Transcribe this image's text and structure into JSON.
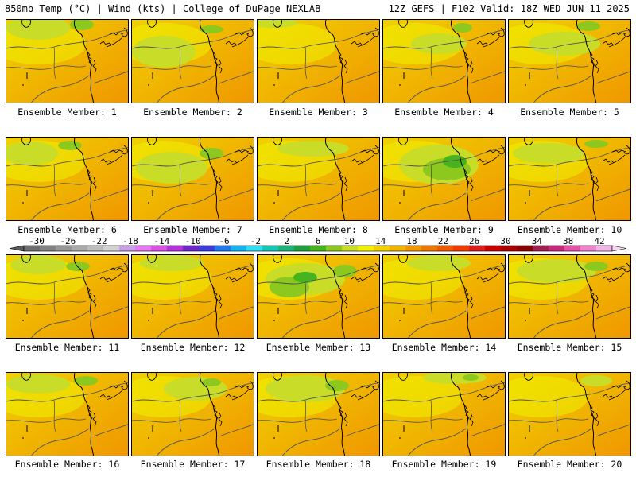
{
  "header": {
    "left": "850mb Temp (°C) | Wind (kts) | College of DuPage NEXLAB",
    "right": "12Z GEFS | F102 Valid: 18Z WED JUN 11 2025"
  },
  "panels": [
    {
      "caption": "Ensemble Member: 1"
    },
    {
      "caption": "Ensemble Member: 2"
    },
    {
      "caption": "Ensemble Member: 3"
    },
    {
      "caption": "Ensemble Member: 4"
    },
    {
      "caption": "Ensemble Member: 5"
    },
    {
      "caption": "Ensemble Member: 6"
    },
    {
      "caption": "Ensemble Member: 7"
    },
    {
      "caption": "Ensemble Member: 8"
    },
    {
      "caption": "Ensemble Member: 9"
    },
    {
      "caption": "Ensemble Member: 10"
    },
    {
      "caption": "Ensemble Member: 11"
    },
    {
      "caption": "Ensemble Member: 12"
    },
    {
      "caption": "Ensemble Member: 13"
    },
    {
      "caption": "Ensemble Member: 14"
    },
    {
      "caption": "Ensemble Member: 15"
    },
    {
      "caption": "Ensemble Member: 16"
    },
    {
      "caption": "Ensemble Member: 17"
    },
    {
      "caption": "Ensemble Member: 18"
    },
    {
      "caption": "Ensemble Member: 19"
    },
    {
      "caption": "Ensemble Member: 20"
    }
  ],
  "colorbar": {
    "labels": [
      "-30",
      "-26",
      "-22",
      "-18",
      "-14",
      "-10",
      "-6",
      "-2",
      "2",
      "6",
      "10",
      "14",
      "18",
      "22",
      "26",
      "30",
      "34",
      "38",
      "42"
    ],
    "colors": [
      "#6e6e6e",
      "#828282",
      "#969696",
      "#aaaaaa",
      "#bebebe",
      "#d2d2d2",
      "#c8a0e6",
      "#e678f0",
      "#dc50e6",
      "#b432dc",
      "#6e28c8",
      "#3c3cdc",
      "#1e78f0",
      "#14b4f0",
      "#32dcf0",
      "#14c8b4",
      "#1eb478",
      "#1ea03c",
      "#46b41e",
      "#8cc81e",
      "#c8dc28",
      "#f0f000",
      "#f0d200",
      "#f0b400",
      "#f09600",
      "#f07800",
      "#f05a00",
      "#f03c00",
      "#dc1e1e",
      "#c80000",
      "#aa0000",
      "#8c0000",
      "#a01e50",
      "#c8287a",
      "#e650aa",
      "#f082d2",
      "#f0b4e6"
    ]
  }
}
